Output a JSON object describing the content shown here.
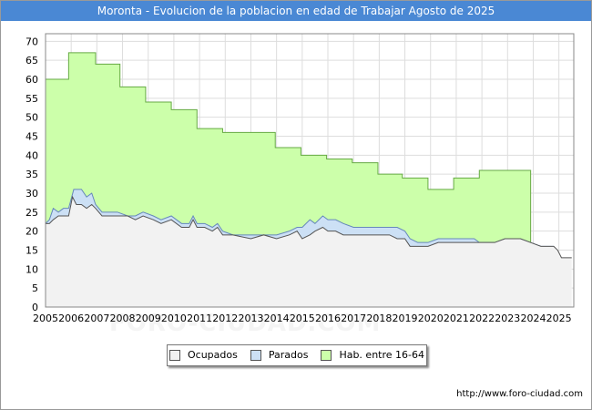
{
  "chart_data": {
    "type": "area",
    "title": "Moronta - Evolucion de la poblacion en edad de Trabajar Agosto de 2025",
    "xlabel": "",
    "ylabel": "",
    "xlim": [
      2005,
      2025.58
    ],
    "ylim": [
      0,
      72
    ],
    "yticks": [
      0,
      5,
      10,
      15,
      20,
      25,
      30,
      35,
      40,
      45,
      50,
      55,
      60,
      65,
      70
    ],
    "xticks": [
      2005,
      2006,
      2007,
      2008,
      2009,
      2010,
      2011,
      2012,
      2013,
      2014,
      2015,
      2016,
      2017,
      2018,
      2019,
      2020,
      2021,
      2022,
      2023,
      2024,
      2025
    ],
    "grid": true,
    "series": [
      {
        "name": "Hab. entre 16-64",
        "color": "#ccffaa",
        "stroke": "#66aa44",
        "points": [
          [
            2005,
            60
          ],
          [
            2005.9,
            60
          ],
          [
            2005.9,
            67
          ],
          [
            2006.95,
            67
          ],
          [
            2006.95,
            64
          ],
          [
            2007.9,
            64
          ],
          [
            2007.9,
            58
          ],
          [
            2008.9,
            58
          ],
          [
            2008.9,
            54
          ],
          [
            2009.9,
            54
          ],
          [
            2009.9,
            52
          ],
          [
            2010.9,
            52
          ],
          [
            2010.9,
            47
          ],
          [
            2011.9,
            47
          ],
          [
            2011.9,
            46
          ],
          [
            2013.95,
            46
          ],
          [
            2013.95,
            42
          ],
          [
            2014.95,
            42
          ],
          [
            2014.95,
            40
          ],
          [
            2015.95,
            40
          ],
          [
            2015.95,
            39
          ],
          [
            2016.95,
            39
          ],
          [
            2016.95,
            38
          ],
          [
            2017.95,
            38
          ],
          [
            2017.95,
            35
          ],
          [
            2018.9,
            35
          ],
          [
            2018.9,
            34
          ],
          [
            2019.9,
            34
          ],
          [
            2019.9,
            31
          ],
          [
            2020.9,
            31
          ],
          [
            2020.9,
            34
          ],
          [
            2021.9,
            34
          ],
          [
            2021.9,
            36
          ],
          [
            2023.9,
            36
          ],
          [
            2023.9,
            17
          ]
        ]
      },
      {
        "name": "Parados",
        "color": "#cce0f5",
        "stroke": "#6688bb",
        "points": [
          [
            2005,
            22
          ],
          [
            2005.15,
            23
          ],
          [
            2005.3,
            26
          ],
          [
            2005.5,
            25
          ],
          [
            2005.7,
            26
          ],
          [
            2005.9,
            26
          ],
          [
            2006.1,
            31
          ],
          [
            2006.4,
            31
          ],
          [
            2006.6,
            29
          ],
          [
            2006.8,
            30
          ],
          [
            2006.95,
            27
          ],
          [
            2007.2,
            25
          ],
          [
            2007.5,
            25
          ],
          [
            2007.8,
            25
          ],
          [
            2008.2,
            24
          ],
          [
            2008.5,
            24
          ],
          [
            2008.8,
            25
          ],
          [
            2009.2,
            24
          ],
          [
            2009.5,
            23
          ],
          [
            2009.9,
            24
          ],
          [
            2010.3,
            22
          ],
          [
            2010.6,
            22
          ],
          [
            2010.75,
            24
          ],
          [
            2010.9,
            22
          ],
          [
            2011.2,
            22
          ],
          [
            2011.5,
            21
          ],
          [
            2011.7,
            22
          ],
          [
            2011.9,
            20
          ],
          [
            2012.3,
            19
          ],
          [
            2013,
            19
          ],
          [
            2013.5,
            19
          ],
          [
            2014,
            19
          ],
          [
            2014.5,
            20
          ],
          [
            2014.8,
            21
          ],
          [
            2015.0,
            21
          ],
          [
            2015.3,
            23
          ],
          [
            2015.5,
            22
          ],
          [
            2015.8,
            24
          ],
          [
            2016.0,
            23
          ],
          [
            2016.3,
            23
          ],
          [
            2016.6,
            22
          ],
          [
            2017.0,
            21
          ],
          [
            2017.5,
            21
          ],
          [
            2018.0,
            21
          ],
          [
            2018.4,
            21
          ],
          [
            2018.7,
            21
          ],
          [
            2019.0,
            20
          ],
          [
            2019.2,
            18
          ],
          [
            2019.5,
            17
          ],
          [
            2019.9,
            17
          ],
          [
            2020.3,
            18
          ],
          [
            2020.7,
            18
          ],
          [
            2021.0,
            18
          ],
          [
            2021.4,
            18
          ],
          [
            2021.7,
            18
          ],
          [
            2021.9,
            17
          ],
          [
            2022.5,
            17
          ],
          [
            2022.9,
            18
          ],
          [
            2023.5,
            18
          ],
          [
            2023.9,
            17
          ],
          [
            2024.3,
            16
          ],
          [
            2024.8,
            16
          ]
        ]
      },
      {
        "name": "Ocupados",
        "color": "#f2f2f2",
        "stroke": "#555555",
        "points": [
          [
            2005,
            22
          ],
          [
            2005.15,
            22
          ],
          [
            2005.3,
            23
          ],
          [
            2005.5,
            24
          ],
          [
            2005.7,
            24
          ],
          [
            2005.9,
            24
          ],
          [
            2006.05,
            29
          ],
          [
            2006.2,
            27
          ],
          [
            2006.4,
            27
          ],
          [
            2006.6,
            26
          ],
          [
            2006.8,
            27
          ],
          [
            2006.95,
            26
          ],
          [
            2007.2,
            24
          ],
          [
            2007.5,
            24
          ],
          [
            2007.8,
            24
          ],
          [
            2008.2,
            24
          ],
          [
            2008.5,
            23
          ],
          [
            2008.8,
            24
          ],
          [
            2009.2,
            23
          ],
          [
            2009.5,
            22
          ],
          [
            2009.9,
            23
          ],
          [
            2010.3,
            21
          ],
          [
            2010.6,
            21
          ],
          [
            2010.75,
            23
          ],
          [
            2010.9,
            21
          ],
          [
            2011.2,
            21
          ],
          [
            2011.5,
            20
          ],
          [
            2011.7,
            21
          ],
          [
            2011.9,
            19
          ],
          [
            2012.3,
            19
          ],
          [
            2013,
            18
          ],
          [
            2013.5,
            19
          ],
          [
            2014,
            18
          ],
          [
            2014.5,
            19
          ],
          [
            2014.8,
            20
          ],
          [
            2015.0,
            18
          ],
          [
            2015.3,
            19
          ],
          [
            2015.5,
            20
          ],
          [
            2015.8,
            21
          ],
          [
            2016.0,
            20
          ],
          [
            2016.3,
            20
          ],
          [
            2016.6,
            19
          ],
          [
            2017.0,
            19
          ],
          [
            2017.5,
            19
          ],
          [
            2018.0,
            19
          ],
          [
            2018.4,
            19
          ],
          [
            2018.7,
            18
          ],
          [
            2019.0,
            18
          ],
          [
            2019.2,
            16
          ],
          [
            2019.5,
            16
          ],
          [
            2019.9,
            16
          ],
          [
            2020.3,
            17
          ],
          [
            2020.7,
            17
          ],
          [
            2021.0,
            17
          ],
          [
            2021.4,
            17
          ],
          [
            2021.7,
            17
          ],
          [
            2021.9,
            17
          ],
          [
            2022.5,
            17
          ],
          [
            2022.9,
            18
          ],
          [
            2023.5,
            18
          ],
          [
            2023.9,
            17
          ],
          [
            2024.3,
            16
          ],
          [
            2024.8,
            16
          ],
          [
            2024.95,
            15
          ],
          [
            2025.1,
            13
          ],
          [
            2025.5,
            13
          ]
        ]
      }
    ],
    "legend": [
      "Ocupados",
      "Parados",
      "Hab. entre 16-64"
    ],
    "legend_position": "bottom-center"
  },
  "legend": {
    "ocupados": "Ocupados",
    "parados": "Parados",
    "hab": "Hab. entre 16-64"
  },
  "watermark": "FORO-CIUDAD.COM",
  "source_url": "http://www.foro-ciudad.com",
  "colors": {
    "title_bar": "#4a88d4",
    "ocupados": "#f2f2f2",
    "parados": "#cce0f5",
    "hab": "#ccffaa"
  }
}
